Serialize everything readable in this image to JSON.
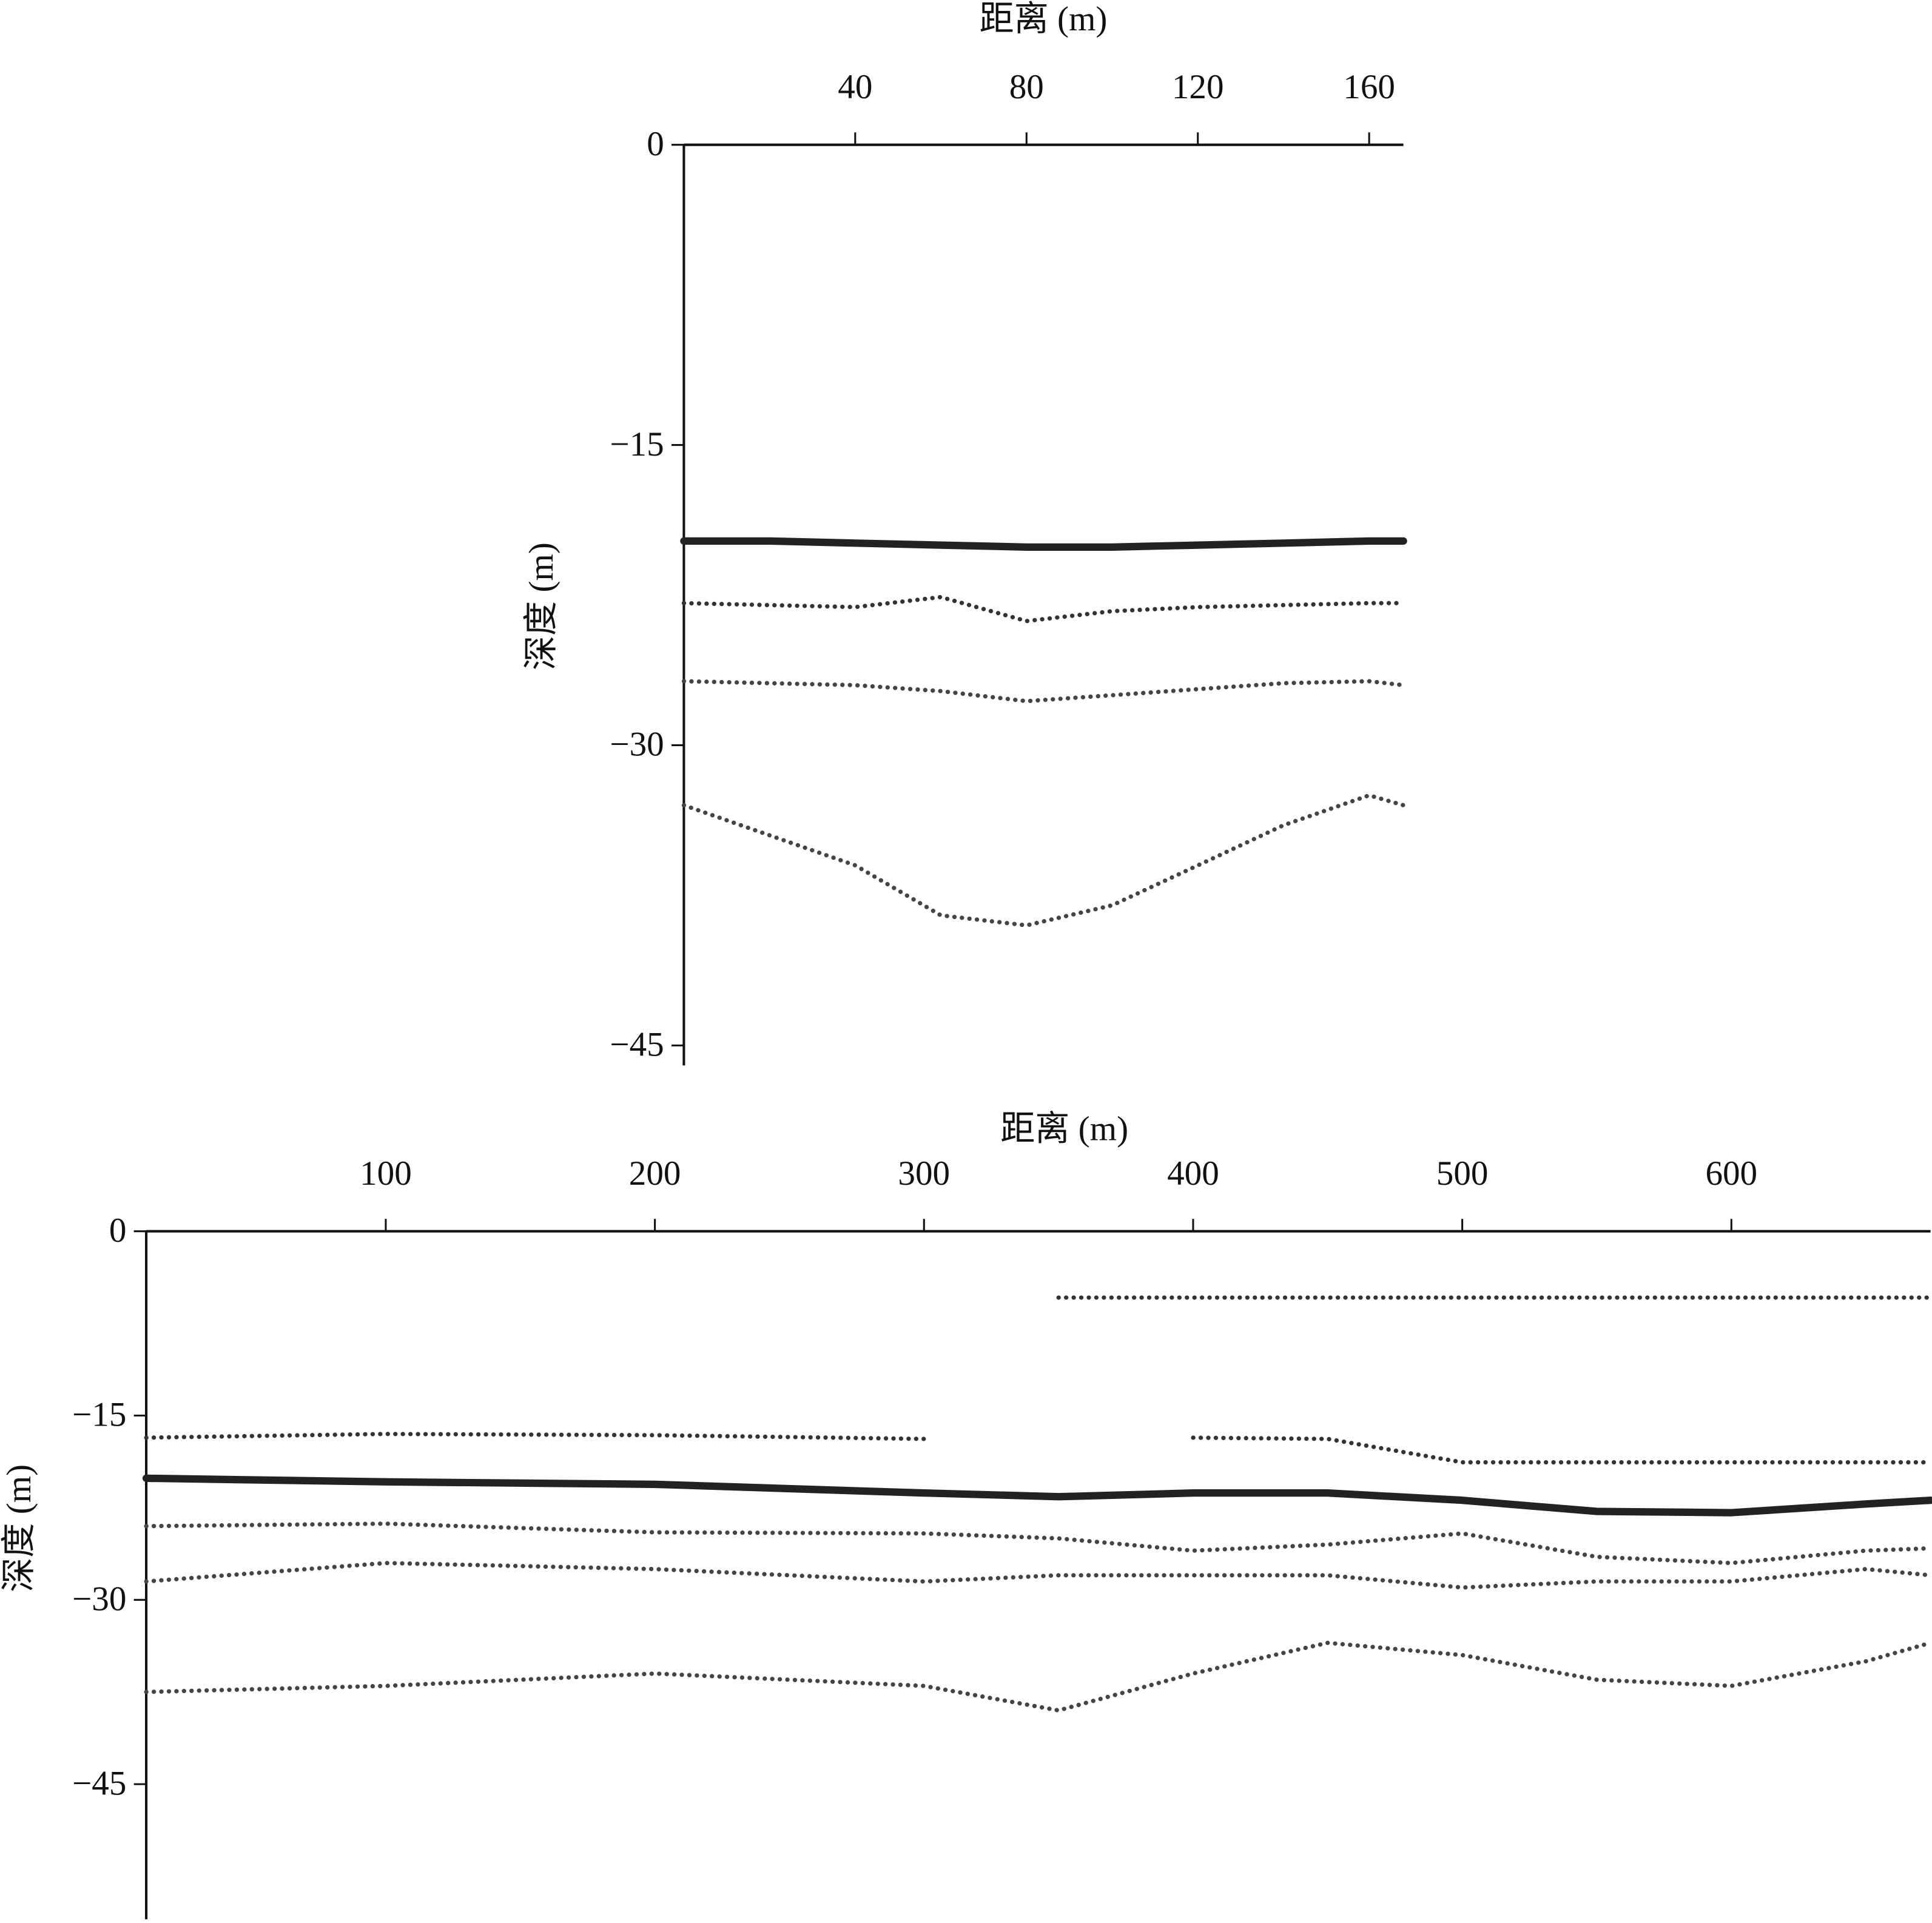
{
  "chart_data": [
    {
      "type": "line",
      "xlabel": "距离 (m)",
      "ylabel": "深度 (m)",
      "x": [
        0,
        20,
        40,
        60,
        80,
        100,
        120,
        140,
        160,
        168
      ],
      "series": [
        {
          "color": "#222222",
          "values": [
            -19.8,
            -19.8,
            -19.9,
            -20.0,
            -20.1,
            -20.1,
            -20.0,
            -19.9,
            -19.8,
            -19.8
          ]
        },
        {
          "color": "#333333",
          "values": [
            -22.9,
            -23.0,
            -23.1,
            -22.6,
            -23.8,
            -23.3,
            -23.1,
            -23.0,
            -22.9,
            -22.9
          ]
        },
        {
          "color": "#444444",
          "values": [
            -26.8,
            -26.9,
            -27.0,
            -27.3,
            -27.8,
            -27.5,
            -27.2,
            -26.9,
            -26.8,
            -27.0
          ]
        },
        {
          "color": "#444444",
          "values": [
            -33.0,
            -34.5,
            -36.0,
            -38.5,
            -39.0,
            -38.0,
            -36.0,
            -34.0,
            -32.5,
            -33.0
          ]
        }
      ],
      "xlim": [
        0,
        168
      ],
      "ylim": [
        -46,
        0
      ],
      "xticks": [
        40,
        80,
        120,
        160
      ],
      "yticks": [
        0,
        {
          "value": -15,
          "label": "−15"
        },
        {
          "value": -30,
          "label": "−30"
        },
        {
          "value": -45,
          "label": "−45"
        }
      ]
    },
    {
      "type": "line",
      "xlabel": "距离 (m)",
      "ylabel": "深度 (m)",
      "x": [
        11,
        100,
        200,
        300,
        350,
        400,
        450,
        500,
        550,
        600,
        650,
        674
      ],
      "series": [
        {
          "color": "#222222",
          "values": [
            -20.1,
            -20.4,
            -20.6,
            -21.3,
            -21.6,
            -21.3,
            -21.3,
            -21.9,
            -22.8,
            -22.9,
            -22.2,
            -21.9
          ]
        },
        {
          "color": "#333333",
          "values": [
            null,
            null,
            null,
            null,
            -5.4,
            -5.4,
            -5.4,
            -5.4,
            -5.4,
            -5.4,
            -5.4,
            -5.4
          ]
        },
        {
          "color": "#333333",
          "values": [
            -16.8,
            -16.5,
            -16.6,
            -16.9,
            null,
            -16.8,
            -16.9,
            -18.8,
            -18.8,
            -18.8,
            -18.8,
            -18.8
          ]
        },
        {
          "color": "#444444",
          "values": [
            -24.0,
            -23.8,
            -24.5,
            -24.6,
            -25.0,
            -26.0,
            -25.5,
            -24.6,
            -26.5,
            -27.0,
            -26.0,
            -25.8
          ]
        },
        {
          "color": "#444444",
          "values": [
            -28.5,
            -27.0,
            -27.5,
            -28.5,
            -28.0,
            -28.0,
            -28.0,
            -29.0,
            -28.5,
            -28.5,
            -27.5,
            -28.0
          ]
        },
        {
          "color": "#444444",
          "values": [
            -37.5,
            -37.0,
            -36.0,
            -37.0,
            -39.0,
            -36.0,
            -33.5,
            -34.5,
            -36.5,
            -37.0,
            -35.0,
            -33.5
          ]
        }
      ],
      "xlim": [
        11,
        674
      ],
      "ylim": [
        -56,
        0
      ],
      "xticks": [
        100,
        200,
        300,
        400,
        500,
        600
      ],
      "yticks": [
        0,
        {
          "value": -15,
          "label": "−15"
        },
        {
          "value": -30,
          "label": "−30"
        },
        {
          "value": -45,
          "label": "−45"
        }
      ]
    }
  ]
}
